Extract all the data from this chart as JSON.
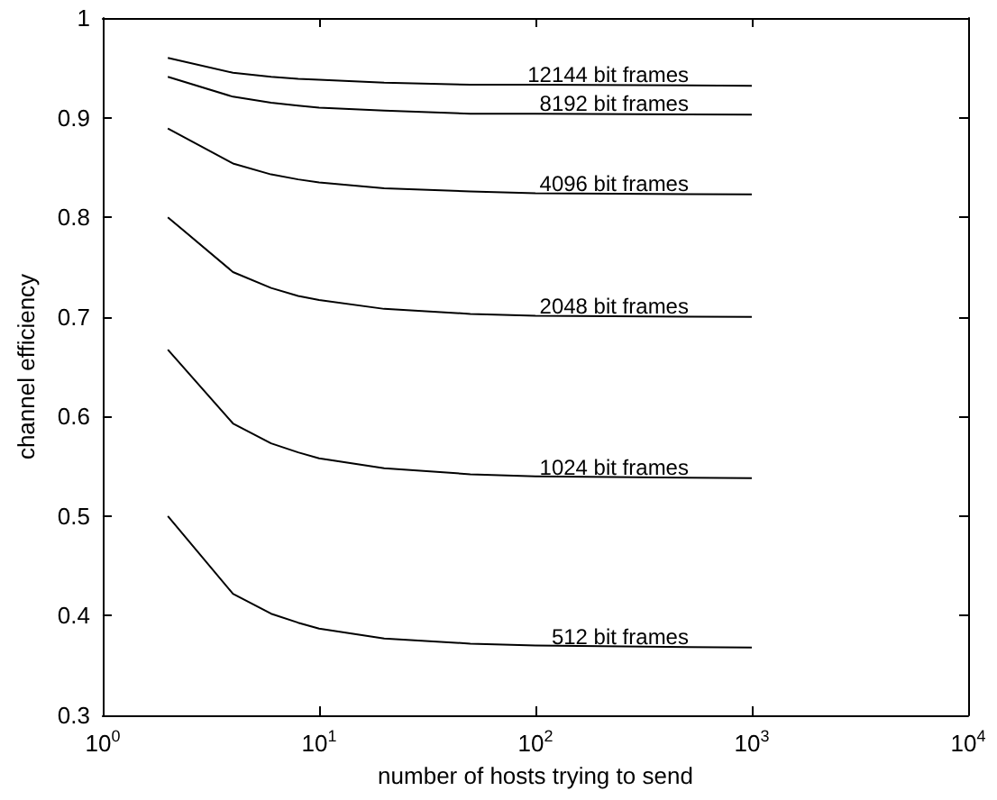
{
  "chart_data": {
    "type": "line",
    "xlabel": "number of hosts trying to send",
    "ylabel": "channel efficiency",
    "x": [
      2,
      4,
      6,
      8,
      10,
      20,
      50,
      100,
      1000
    ],
    "series": [
      {
        "name": "12144 bit frames",
        "color": "#000000",
        "values": [
          0.96,
          0.945,
          0.941,
          0.939,
          0.938,
          0.935,
          0.933,
          0.933,
          0.932
        ]
      },
      {
        "name": "8192 bit frames",
        "color": "#000000",
        "values": [
          0.941,
          0.921,
          0.915,
          0.912,
          0.91,
          0.907,
          0.904,
          0.904,
          0.903
        ]
      },
      {
        "name": "4096 bit frames",
        "color": "#000000",
        "values": [
          0.889,
          0.854,
          0.843,
          0.838,
          0.835,
          0.829,
          0.826,
          0.824,
          0.823
        ]
      },
      {
        "name": "2048 bit frames",
        "color": "#000000",
        "values": [
          0.8,
          0.745,
          0.729,
          0.721,
          0.717,
          0.708,
          0.703,
          0.701,
          0.7
        ]
      },
      {
        "name": "1024 bit frames",
        "color": "#000000",
        "values": [
          0.667,
          0.593,
          0.573,
          0.564,
          0.558,
          0.548,
          0.542,
          0.54,
          0.538
        ]
      },
      {
        "name": "512 bit frames",
        "color": "#000000",
        "values": [
          0.5,
          0.422,
          0.402,
          0.393,
          0.387,
          0.377,
          0.372,
          0.37,
          0.368
        ]
      }
    ],
    "log": "x",
    "xlim": [
      1,
      10000
    ],
    "xticks": [
      {
        "value": 1,
        "label": "10$^{0}$"
      },
      {
        "value": 10,
        "label": "10$^{1}$"
      },
      {
        "value": 100,
        "label": "10$^{2}$"
      },
      {
        "value": 1000,
        "label": "10$^{3}$"
      },
      {
        "value": 10000,
        "label": "10$^{4}$"
      }
    ],
    "ylim": [
      0.3,
      1
    ],
    "yticks": [
      0.3,
      0.4,
      0.5,
      0.6,
      0.7,
      0.8,
      0.9,
      1
    ],
    "grid": false,
    "legend": false,
    "marker": "none",
    "line_style": "solid"
  }
}
